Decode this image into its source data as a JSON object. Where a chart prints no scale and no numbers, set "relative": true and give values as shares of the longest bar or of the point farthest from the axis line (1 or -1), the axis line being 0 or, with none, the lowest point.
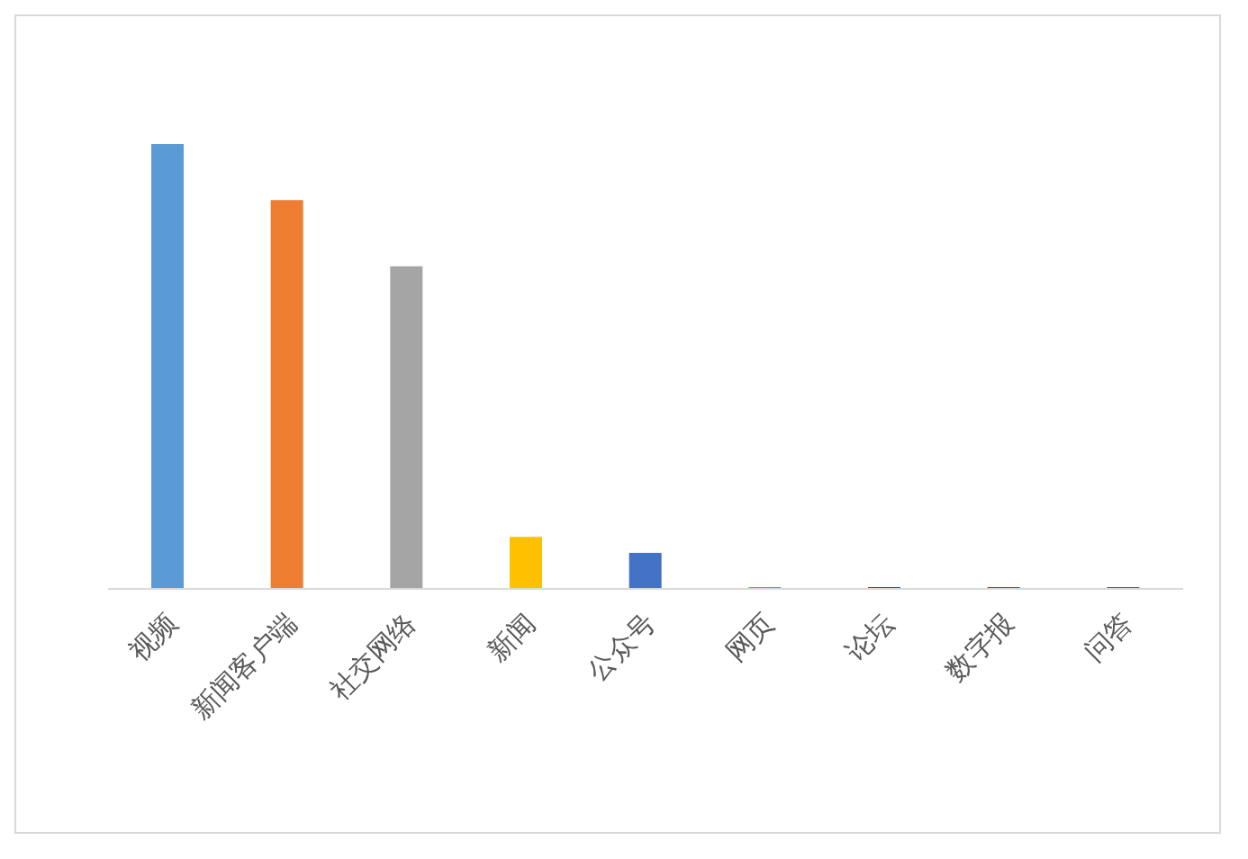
{
  "chart_data": {
    "type": "bar",
    "relative": true,
    "categories": [
      "视频",
      "新闻客户端",
      "社交网络",
      "新闻",
      "公众号",
      "网页",
      "论坛",
      "数字报",
      "问答"
    ],
    "values": [
      1,
      0.874,
      0.725,
      0.117,
      0.081,
      0.004,
      0.004,
      0.004,
      0.004
    ],
    "colors": [
      "#5b9bd5",
      "#ed7d31",
      "#a5a5a5",
      "#ffc000",
      "#4472c4",
      "#70ad47",
      "#255e91",
      "#9e480e",
      "#636363"
    ],
    "grid": false,
    "legend": false
  }
}
